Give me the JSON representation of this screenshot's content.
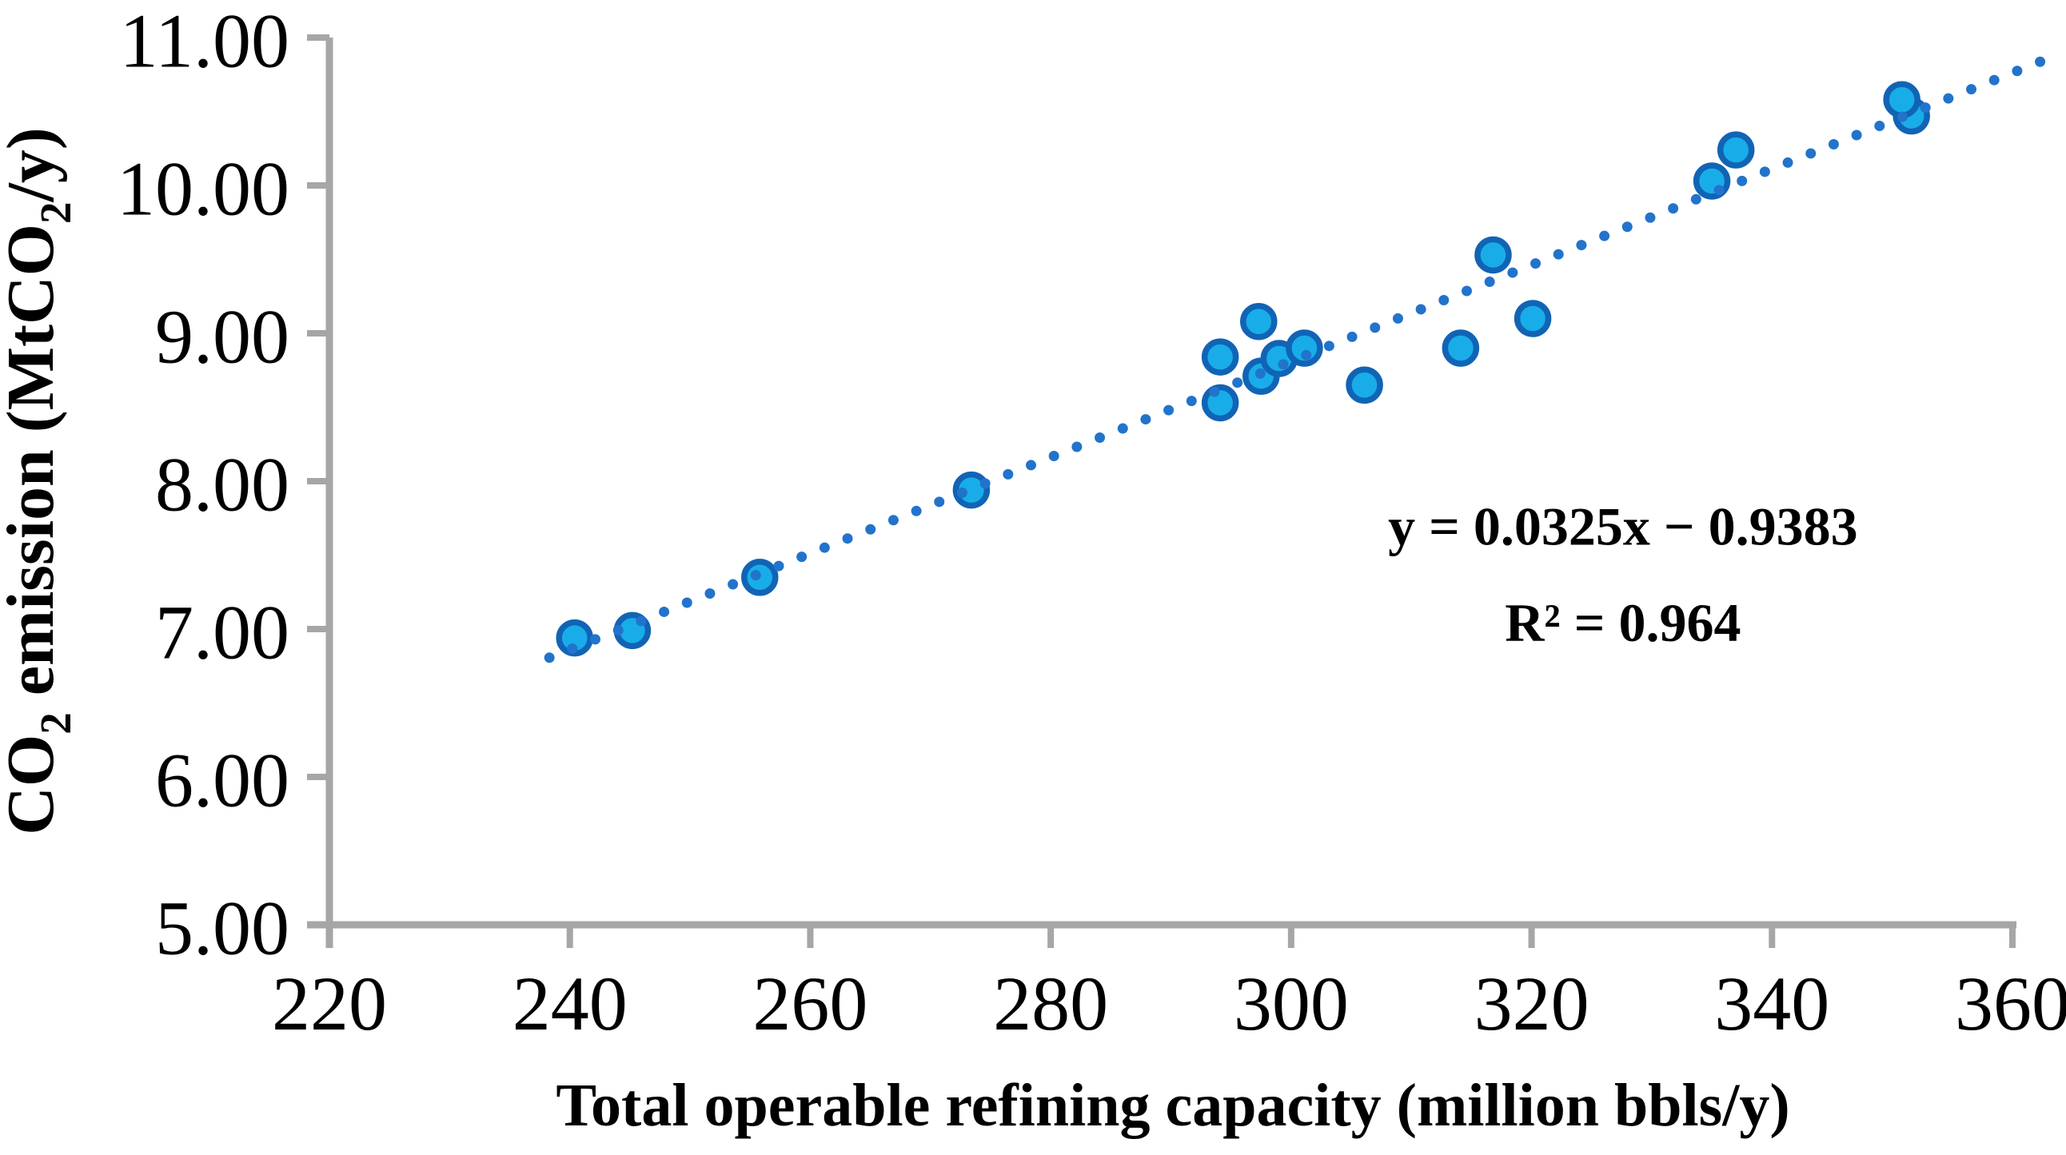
{
  "colors": {
    "axis": "#A6A6A6",
    "text": "#000000",
    "marker_fill": "#18ADE9",
    "marker_stroke": "#1164B5",
    "trend_dot": "#2273CB",
    "background": "#FFFFFF"
  },
  "chart_data": {
    "type": "scatter",
    "title": "",
    "xlabel": "Total operable refining capacity (million bbls/y)",
    "ylabel": "CO₂ emission (MtCO₂/y)",
    "ylabel_parts": [
      {
        "t": "CO"
      },
      {
        "t": "2",
        "sub": true
      },
      {
        "t": " emission (MtCO"
      },
      {
        "t": "2",
        "sub": true
      },
      {
        "t": "/y)"
      }
    ],
    "xlim": [
      220,
      360
    ],
    "ylim": [
      5,
      11
    ],
    "grid": false,
    "legend": "none",
    "x_ticks": [
      {
        "v": 220,
        "label": "220"
      },
      {
        "v": 240,
        "label": "240"
      },
      {
        "v": 260,
        "label": "260"
      },
      {
        "v": 280,
        "label": "280"
      },
      {
        "v": 300,
        "label": "300"
      },
      {
        "v": 320,
        "label": "320"
      },
      {
        "v": 340,
        "label": "340"
      },
      {
        "v": 360,
        "label": "360"
      }
    ],
    "y_ticks": [
      {
        "v": 5,
        "label": "5.00"
      },
      {
        "v": 6,
        "label": "6.00"
      },
      {
        "v": 7,
        "label": "7.00"
      },
      {
        "v": 8,
        "label": "8.00"
      },
      {
        "v": 9,
        "label": "9.00"
      },
      {
        "v": 10,
        "label": "10.00"
      },
      {
        "v": 11,
        "label": "11.00"
      }
    ],
    "points": [
      [
        240.4,
        6.94
      ],
      [
        245.2,
        6.99
      ],
      [
        255.8,
        7.35
      ],
      [
        273.4,
        7.94
      ],
      [
        294.1,
        8.53
      ],
      [
        294.1,
        8.84
      ],
      [
        297.3,
        9.08
      ],
      [
        297.5,
        8.71
      ],
      [
        299.0,
        8.83
      ],
      [
        301.1,
        8.9
      ],
      [
        306.1,
        8.65
      ],
      [
        314.1,
        8.9
      ],
      [
        316.8,
        9.53
      ],
      [
        320.1,
        9.1
      ],
      [
        335.0,
        10.03
      ],
      [
        337.0,
        10.24
      ],
      [
        351.6,
        10.47
      ],
      [
        350.8,
        10.58
      ]
    ],
    "trendline": {
      "style": "dotted",
      "slope": 0.0325,
      "intercept": -0.9383,
      "x_start": 238.3,
      "x_end": 362.3
    },
    "annotation": {
      "lines": [
        {
          "text": "y = 0.0325x − 0.9383",
          "x": 327.6,
          "y": 7.57
        },
        {
          "text": "R² = 0.964",
          "x": 327.6,
          "y": 6.92
        }
      ]
    }
  }
}
